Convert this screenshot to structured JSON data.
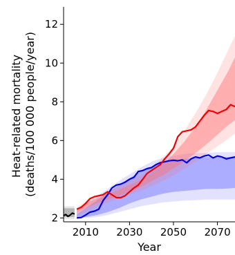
{
  "chart_data": {
    "type": "line",
    "xlabel": "Year",
    "ylabel_lines": [
      "Heat-related mortality",
      "(deaths/100 000 people/year)"
    ],
    "xlim": [
      2000,
      2078
    ],
    "ylim": [
      1.8,
      12.9
    ],
    "xticks": [
      2010,
      2030,
      2050,
      2070
    ],
    "yticks": [
      2,
      4,
      6,
      8,
      10,
      12
    ],
    "xtick_labels": [
      "2010",
      "2030",
      "2050",
      "2070"
    ],
    "ytick_labels": [
      "2",
      "4",
      "6",
      "8",
      "10",
      "12"
    ],
    "grid": false,
    "series": [
      {
        "color": "#000000",
        "band_color": "#7f7f7f",
        "band_outer": {
          "x": [
            2000,
            2005
          ],
          "low": [
            1.95,
            1.95
          ],
          "high": [
            2.6,
            2.6
          ]
        },
        "band_inner": {
          "x": [
            2000,
            2005
          ],
          "low": [
            2.05,
            2.05
          ],
          "high": [
            2.5,
            2.5
          ]
        },
        "line": {
          "x": [
            2000,
            2001,
            2002,
            2003,
            2004,
            2005
          ],
          "y": [
            2.12,
            2.18,
            2.08,
            2.15,
            2.25,
            2.2
          ]
        }
      },
      {
        "color": "#0000dd",
        "band_color": "#6c6cff",
        "band_outer": {
          "x": [
            2006,
            2010,
            2015,
            2020,
            2025,
            2030,
            2035,
            2040,
            2045,
            2050,
            2055,
            2060,
            2065,
            2070,
            2075,
            2078
          ],
          "low": [
            2.0,
            2.0,
            2.05,
            2.15,
            2.3,
            2.45,
            2.6,
            2.7,
            2.8,
            2.85,
            2.9,
            2.92,
            2.95,
            2.95,
            2.95,
            2.95
          ],
          "high": [
            2.5,
            2.75,
            3.1,
            3.5,
            3.9,
            4.25,
            4.6,
            4.9,
            5.1,
            5.2,
            5.3,
            5.35,
            5.35,
            5.4,
            5.4,
            5.4
          ]
        },
        "band_inner": {
          "x": [
            2006,
            2010,
            2015,
            2020,
            2025,
            2030,
            2035,
            2040,
            2045,
            2050,
            2055,
            2060,
            2065,
            2070,
            2075,
            2078
          ],
          "low": [
            2.02,
            2.05,
            2.15,
            2.3,
            2.5,
            2.75,
            2.95,
            3.1,
            3.25,
            3.35,
            3.4,
            3.45,
            3.5,
            3.5,
            3.52,
            3.55
          ],
          "high": [
            2.2,
            2.5,
            2.9,
            3.3,
            3.7,
            4.05,
            4.4,
            4.65,
            4.85,
            4.95,
            5.05,
            5.1,
            5.15,
            5.15,
            5.15,
            5.15
          ]
        },
        "line": {
          "x": [
            2006,
            2008,
            2010,
            2012,
            2014,
            2016,
            2018,
            2020,
            2022,
            2024,
            2026,
            2028,
            2030,
            2032,
            2034,
            2036,
            2038,
            2040,
            2042,
            2044,
            2046,
            2048,
            2050,
            2052,
            2054,
            2056,
            2058,
            2060,
            2062,
            2064,
            2066,
            2068,
            2070,
            2072,
            2074,
            2076,
            2078
          ],
          "y": [
            2.0,
            2.02,
            2.15,
            2.3,
            2.35,
            2.45,
            2.9,
            3.2,
            3.55,
            3.7,
            3.75,
            3.85,
            4.0,
            4.1,
            4.4,
            4.45,
            4.55,
            4.6,
            4.75,
            4.85,
            4.9,
            4.95,
            4.98,
            4.95,
            5.0,
            4.85,
            5.05,
            5.15,
            5.1,
            5.2,
            5.25,
            5.1,
            5.2,
            5.15,
            5.05,
            5.1,
            5.15
          ]
        }
      },
      {
        "color": "#ee0000",
        "band_color": "#ff7070",
        "band_outer": {
          "x": [
            2006,
            2010,
            2015,
            2020,
            2025,
            2030,
            2035,
            2040,
            2045,
            2050,
            2055,
            2060,
            2065,
            2070,
            2075,
            2078
          ],
          "low": [
            2.1,
            2.3,
            2.55,
            2.8,
            3.0,
            3.2,
            3.4,
            3.65,
            3.9,
            4.2,
            4.55,
            4.9,
            5.3,
            5.7,
            6.1,
            6.35
          ],
          "high": [
            2.55,
            2.85,
            3.15,
            3.4,
            3.65,
            3.9,
            4.2,
            4.6,
            5.1,
            5.7,
            6.5,
            7.4,
            8.4,
            9.5,
            10.7,
            11.4
          ]
        },
        "band_inner": {
          "x": [
            2006,
            2010,
            2015,
            2020,
            2025,
            2030,
            2035,
            2040,
            2045,
            2050,
            2055,
            2060,
            2065,
            2070,
            2075,
            2078
          ],
          "low": [
            2.25,
            2.5,
            2.75,
            2.95,
            3.15,
            3.35,
            3.6,
            3.9,
            4.2,
            4.55,
            4.95,
            5.35,
            5.8,
            6.3,
            6.8,
            7.05
          ],
          "high": [
            2.45,
            2.75,
            3.0,
            3.2,
            3.45,
            3.7,
            3.95,
            4.3,
            4.75,
            5.3,
            5.95,
            6.7,
            7.6,
            8.6,
            9.6,
            10.3
          ]
        },
        "line": {
          "x": [
            2006,
            2008,
            2010,
            2012,
            2014,
            2016,
            2018,
            2020,
            2022,
            2024,
            2026,
            2028,
            2030,
            2032,
            2034,
            2036,
            2038,
            2040,
            2042,
            2044,
            2046,
            2048,
            2050,
            2052,
            2054,
            2056,
            2058,
            2060,
            2062,
            2064,
            2066,
            2068,
            2070,
            2072,
            2074,
            2076,
            2078
          ],
          "y": [
            2.45,
            2.55,
            2.75,
            3.0,
            3.1,
            3.15,
            3.2,
            3.35,
            3.2,
            3.05,
            3.05,
            3.15,
            3.35,
            3.55,
            3.7,
            4.0,
            4.3,
            4.45,
            4.6,
            4.75,
            5.05,
            5.3,
            5.6,
            6.2,
            6.45,
            6.5,
            6.55,
            6.7,
            7.0,
            7.3,
            7.55,
            7.5,
            7.4,
            7.5,
            7.6,
            7.85,
            7.75
          ]
        }
      }
    ]
  }
}
